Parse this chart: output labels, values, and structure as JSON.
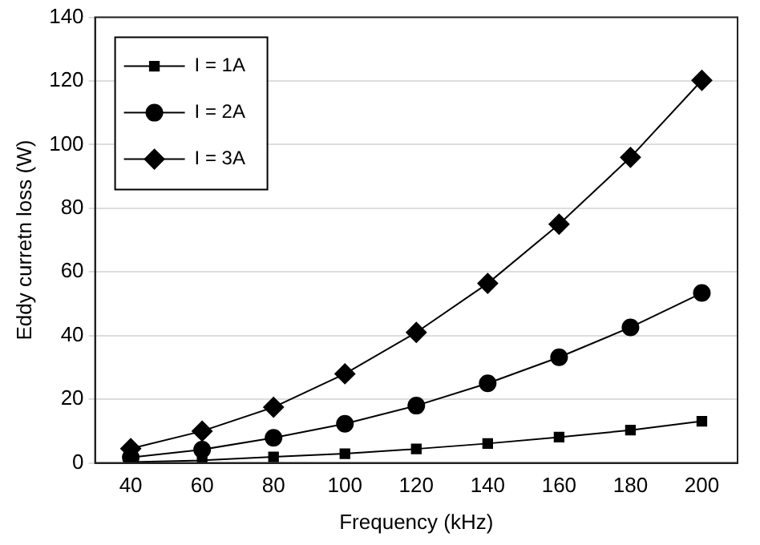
{
  "chart_data": {
    "type": "line",
    "xlabel": "Frequency (kHz)",
    "ylabel": "Eddy curretn loss (W)",
    "x": [
      40,
      60,
      80,
      100,
      120,
      140,
      160,
      180,
      200
    ],
    "xlim": [
      30,
      210
    ],
    "xticks": [
      40,
      60,
      80,
      100,
      120,
      140,
      160,
      180,
      200
    ],
    "ylim": [
      0,
      140
    ],
    "yticks": [
      0,
      20,
      40,
      60,
      80,
      100,
      120,
      140
    ],
    "grid": "y",
    "legend": "top left",
    "series": [
      {
        "name": "I = 1A",
        "color": "#000000",
        "marker": "square",
        "values": [
          0.3,
          0.8,
          1.9,
          2.9,
          4.4,
          6.1,
          8.1,
          10.3,
          13.1
        ]
      },
      {
        "name": "I = 2A",
        "color": "#000000",
        "marker": "circle",
        "values": [
          1.7,
          4.2,
          7.9,
          12.3,
          18,
          25,
          33.2,
          42.6,
          53.4
        ]
      },
      {
        "name": "I = 3A",
        "color": "#000000",
        "marker": "diamond",
        "values": [
          4.5,
          10,
          17.5,
          28,
          41,
          56.4,
          75,
          96,
          120.2
        ]
      }
    ]
  }
}
